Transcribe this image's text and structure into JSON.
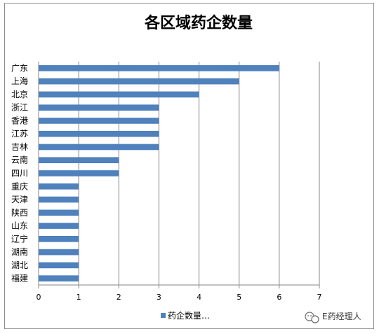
{
  "chart_data": {
    "type": "bar",
    "orientation": "horizontal",
    "title": "各区域药企数量",
    "categories": [
      "广东",
      "上海",
      "北京",
      "浙江",
      "香港",
      "江苏",
      "吉林",
      "云南",
      "四川",
      "重庆",
      "天津",
      "陕西",
      "山东",
      "辽宁",
      "湖南",
      "湖北",
      "福建"
    ],
    "series": [
      {
        "name": "药企数量…",
        "values": [
          6,
          5,
          4,
          3,
          3,
          3,
          3,
          2,
          2,
          1,
          1,
          1,
          1,
          1,
          1,
          1,
          1
        ]
      }
    ],
    "xlim": [
      0,
      7
    ],
    "xticks": [
      "0",
      "1",
      "2",
      "3",
      "4",
      "5",
      "6",
      "7"
    ],
    "grid": true,
    "legend_position": "bottom",
    "bar_color": "#4f81bd",
    "grid_color": "#868686"
  },
  "watermark": {
    "text": "E药经理人",
    "icon": "wechat-icon"
  }
}
